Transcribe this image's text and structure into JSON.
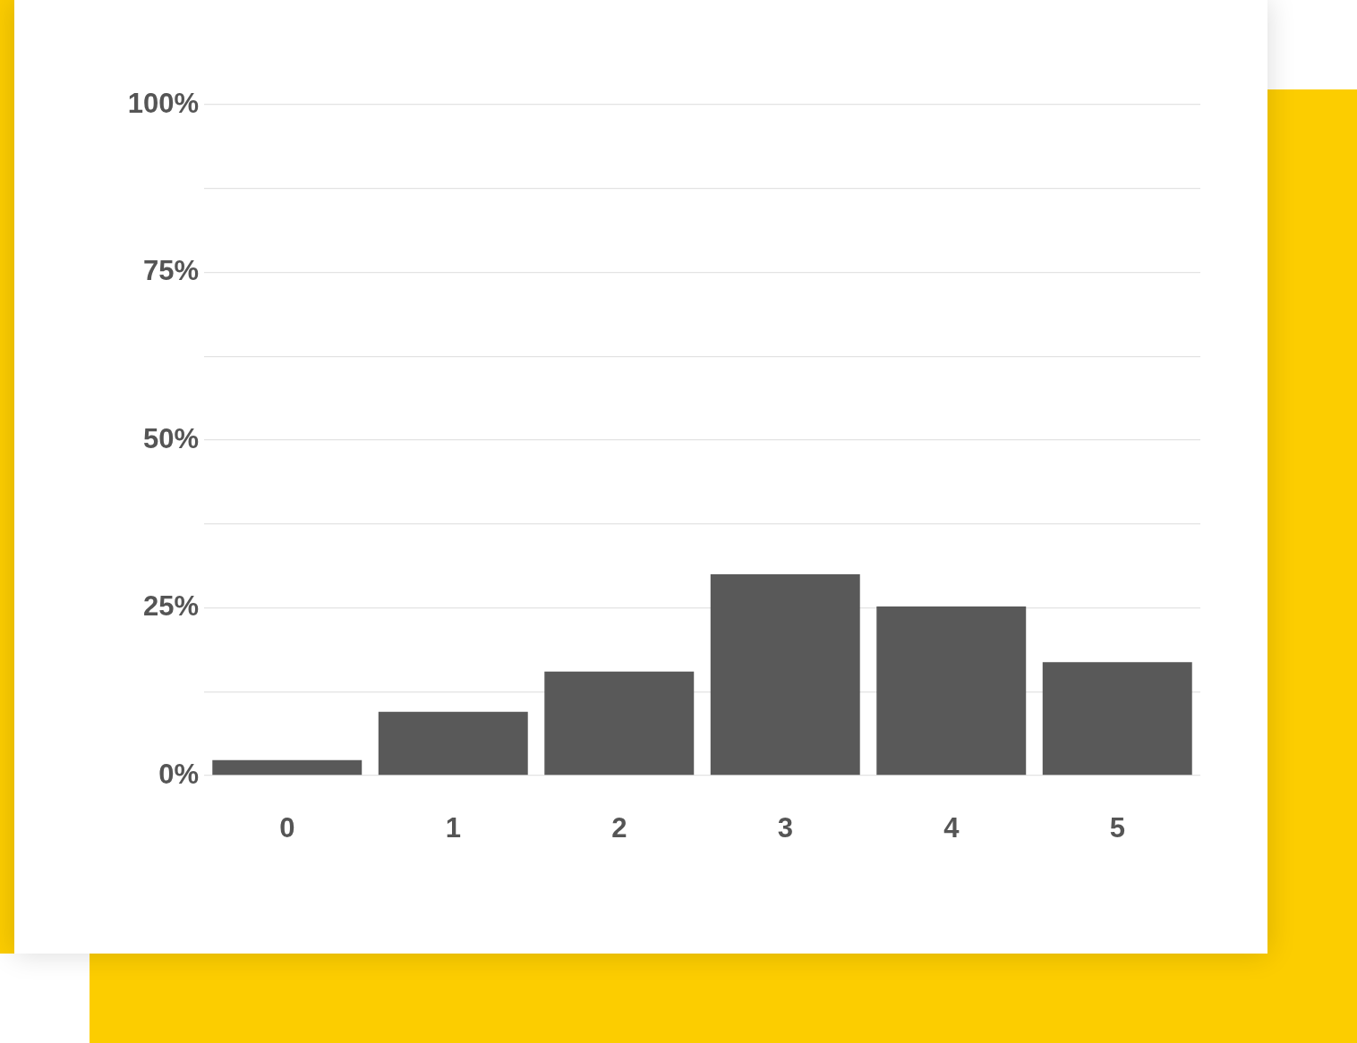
{
  "chart_data": {
    "type": "bar",
    "categories": [
      "0",
      "1",
      "2",
      "3",
      "4",
      "5"
    ],
    "values": [
      2.3,
      9.5,
      15.5,
      30,
      25.2,
      16.9
    ],
    "color": "#595959",
    "ylim": [
      0,
      100
    ],
    "yticks": [
      {
        "value": 0,
        "label": "0%"
      },
      {
        "value": 12.5,
        "label": null
      },
      {
        "value": 25,
        "label": "25%"
      },
      {
        "value": 37.5,
        "label": null
      },
      {
        "value": 50,
        "label": "50%"
      },
      {
        "value": 62.5,
        "label": null
      },
      {
        "value": 75,
        "label": "75%"
      },
      {
        "value": 87.5,
        "label": null
      },
      {
        "value": 100,
        "label": "100%"
      }
    ],
    "grid": "y",
    "legend": false
  }
}
